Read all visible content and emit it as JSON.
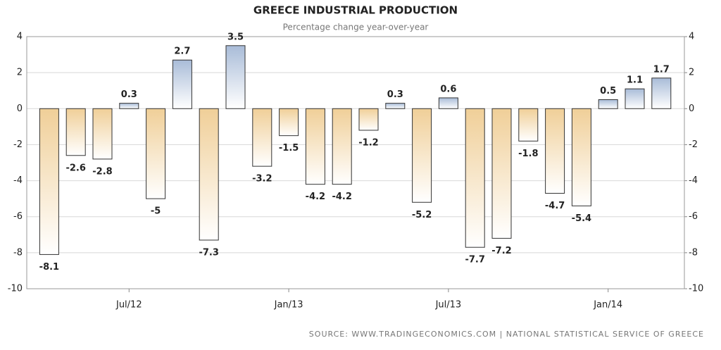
{
  "chart_data": {
    "type": "bar",
    "title": "GREECE INDUSTRIAL PRODUCTION",
    "subtitle": "Percentage change year-over-year",
    "source": "SOURCE: WWW.TRADINGECONOMICS.COM | NATIONAL STATISTICAL SERVICE OF GREECE",
    "categories": [
      null,
      null,
      null,
      "Jul/12",
      null,
      null,
      null,
      null,
      null,
      "Jan/13",
      null,
      null,
      null,
      null,
      null,
      "Jul/13",
      null,
      null,
      null,
      null,
      null,
      "Jan/14",
      null,
      null
    ],
    "values": [
      -8.1,
      -2.6,
      -2.8,
      0.3,
      -5,
      2.7,
      -7.3,
      3.5,
      -3.2,
      -1.5,
      -4.2,
      -4.2,
      -1.2,
      0.3,
      -5.2,
      0.6,
      -7.7,
      -7.2,
      -1.8,
      -4.7,
      -5.4,
      0.5,
      1.1,
      1.7
    ],
    "colors": {
      "positive": "#a9bcd8",
      "negative": "#f0cf98"
    },
    "ylim": [
      -10,
      4
    ],
    "yticks": [
      -10,
      -8,
      -6,
      -4,
      -2,
      0,
      2,
      4
    ],
    "y2lim": [
      -10,
      4
    ],
    "y2ticks": [
      -10,
      -8,
      -6,
      -4,
      -2,
      0,
      2,
      4
    ],
    "grid": true
  }
}
